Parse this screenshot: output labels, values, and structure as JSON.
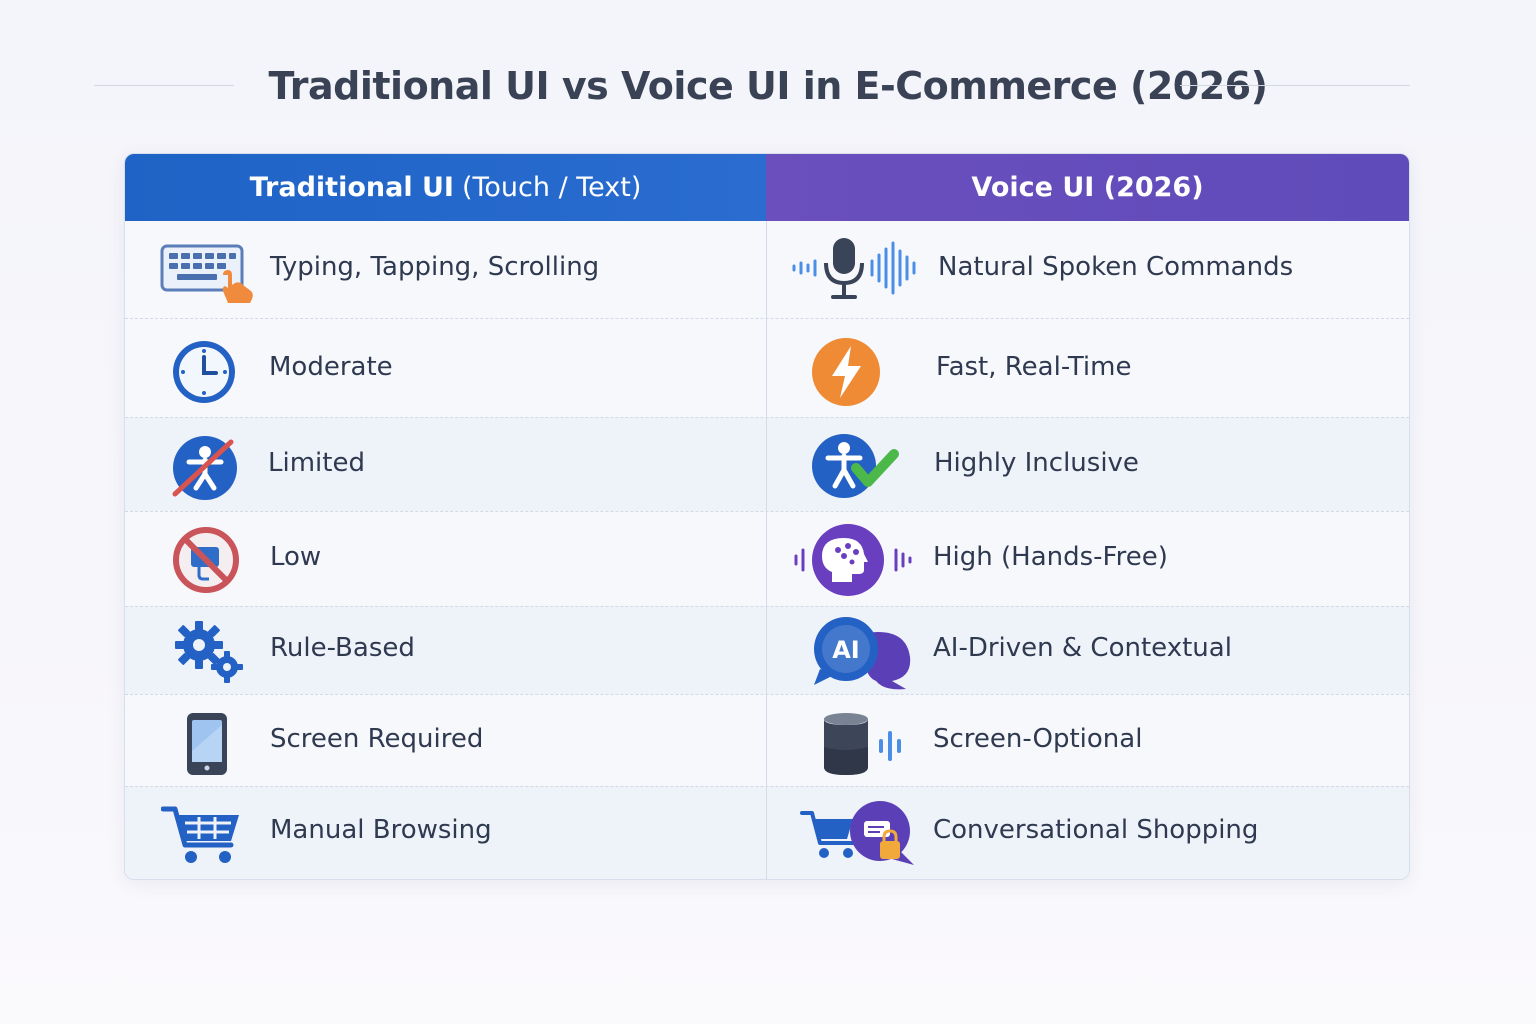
{
  "title": "Traditional UI vs Voice UI in E-Commerce (2026)",
  "header": {
    "left_bold": "Traditional UI",
    "left_light": "(Touch / Text)",
    "right": "Voice UI (2026)"
  },
  "colors": {
    "left_header": "#2266c9",
    "right_header": "#654dbb",
    "title_text": "#3a4356"
  },
  "rows": [
    {
      "traditional": "Typing, Tapping, Scrolling",
      "voice": "Natural Spoken Commands",
      "traditional_icon": "keyboard-touch-icon",
      "voice_icon": "microphone-waveform-icon"
    },
    {
      "traditional": "Moderate",
      "voice": "Fast, Real-Time",
      "traditional_icon": "clock-icon",
      "voice_icon": "lightning-bolt-icon"
    },
    {
      "traditional": "Limited",
      "voice": "Highly Inclusive",
      "traditional_icon": "accessibility-crossed-icon",
      "voice_icon": "accessibility-check-icon"
    },
    {
      "traditional": "Low",
      "voice": "High (Hands-Free)",
      "traditional_icon": "no-hands-icon",
      "voice_icon": "ai-head-icon"
    },
    {
      "traditional": "Rule-Based",
      "voice": "AI-Driven & Contextual",
      "traditional_icon": "gears-icon",
      "voice_icon": "ai-chat-bubble-icon"
    },
    {
      "traditional": "Screen Required",
      "voice": "Screen-Optional",
      "traditional_icon": "smartphone-icon",
      "voice_icon": "smart-speaker-icon"
    },
    {
      "traditional": "Manual Browsing",
      "voice": "Conversational Shopping",
      "traditional_icon": "shopping-cart-icon",
      "voice_icon": "cart-chat-icon"
    }
  ]
}
